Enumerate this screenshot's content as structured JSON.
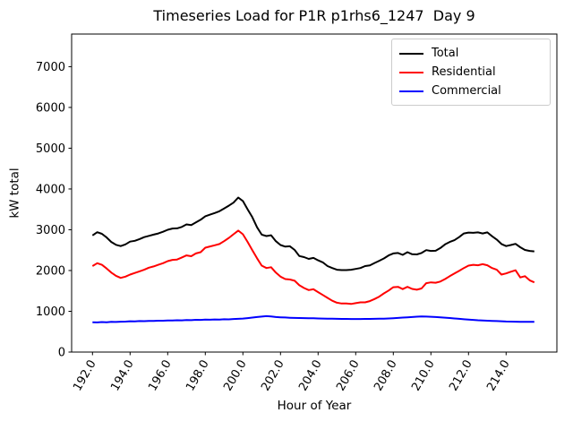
{
  "chart_data": {
    "type": "line",
    "title": "Timeseries Load for P1R p1rhs6_1247  Day 9",
    "xlabel": "Hour of Year",
    "ylabel": "kW total",
    "grid": false,
    "legend_position": "upper right",
    "xlim": [
      190.89,
      216.7
    ],
    "ylim": [
      0,
      7800
    ],
    "x_ticks": [
      192,
      194,
      196,
      198,
      200,
      202,
      204,
      206,
      208,
      210,
      212,
      214
    ],
    "x_tick_labels": [
      "192.0",
      "194.0",
      "196.0",
      "198.0",
      "200.0",
      "202.0",
      "204.0",
      "206.0",
      "208.0",
      "210.0",
      "212.0",
      "214.0"
    ],
    "y_ticks": [
      0,
      1000,
      2000,
      3000,
      4000,
      5000,
      6000,
      7000
    ],
    "y_tick_labels": [
      "0",
      "1000",
      "2000",
      "3000",
      "4000",
      "5000",
      "6000",
      "7000"
    ],
    "x_start": 192.0,
    "x_step": 0.25,
    "series": [
      {
        "name": "Total",
        "color": "#000000",
        "values": [
          2860,
          2940,
          2900,
          2810,
          2700,
          2630,
          2600,
          2640,
          2710,
          2730,
          2770,
          2820,
          2850,
          2880,
          2910,
          2950,
          3000,
          3030,
          3035,
          3070,
          3130,
          3115,
          3180,
          3245,
          3330,
          3370,
          3410,
          3455,
          3520,
          3590,
          3665,
          3790,
          3705,
          3500,
          3310,
          3060,
          2880,
          2845,
          2865,
          2720,
          2625,
          2585,
          2595,
          2505,
          2355,
          2330,
          2285,
          2310,
          2250,
          2200,
          2110,
          2060,
          2020,
          2010,
          2010,
          2020,
          2040,
          2060,
          2110,
          2125,
          2185,
          2240,
          2295,
          2370,
          2420,
          2430,
          2385,
          2450,
          2400,
          2395,
          2430,
          2500,
          2480,
          2485,
          2550,
          2640,
          2700,
          2745,
          2820,
          2910,
          2930,
          2925,
          2935,
          2910,
          2935,
          2840,
          2760,
          2650,
          2600,
          2625,
          2655,
          2570,
          2505,
          2480,
          2470
        ]
      },
      {
        "name": "Residential",
        "color": "#ff0000",
        "values": [
          2110,
          2180,
          2140,
          2050,
          1950,
          1870,
          1820,
          1850,
          1900,
          1940,
          1980,
          2020,
          2070,
          2100,
          2140,
          2180,
          2230,
          2260,
          2270,
          2320,
          2370,
          2350,
          2420,
          2450,
          2560,
          2590,
          2620,
          2650,
          2720,
          2800,
          2890,
          2980,
          2890,
          2700,
          2500,
          2300,
          2120,
          2060,
          2080,
          1950,
          1850,
          1790,
          1780,
          1750,
          1640,
          1570,
          1520,
          1540,
          1470,
          1400,
          1330,
          1260,
          1210,
          1190,
          1190,
          1180,
          1200,
          1220,
          1220,
          1250,
          1300,
          1360,
          1440,
          1510,
          1590,
          1600,
          1545,
          1600,
          1550,
          1530,
          1560,
          1690,
          1710,
          1700,
          1730,
          1790,
          1860,
          1930,
          1990,
          2060,
          2120,
          2140,
          2130,
          2155,
          2130,
          2060,
          2020,
          1900,
          1930,
          1970,
          2005,
          1830,
          1860,
          1760,
          1710
        ]
      },
      {
        "name": "Commercial",
        "color": "#0000ff",
        "values": [
          730,
          728,
          735,
          732,
          740,
          738,
          745,
          748,
          755,
          752,
          760,
          758,
          765,
          763,
          770,
          768,
          775,
          773,
          780,
          778,
          785,
          783,
          790,
          788,
          795,
          793,
          800,
          798,
          805,
          803,
          810,
          815,
          822,
          832,
          845,
          858,
          870,
          880,
          872,
          860,
          852,
          848,
          842,
          838,
          835,
          833,
          830,
          828,
          825,
          822,
          820,
          818,
          815,
          813,
          812,
          811,
          810,
          811,
          812,
          813,
          815,
          818,
          820,
          825,
          830,
          837,
          845,
          852,
          860,
          868,
          875,
          870,
          865,
          858,
          850,
          843,
          835,
          825,
          815,
          805,
          795,
          788,
          780,
          775,
          770,
          765,
          760,
          755,
          750,
          748,
          745,
          742,
          740,
          740,
          740
        ]
      }
    ]
  }
}
